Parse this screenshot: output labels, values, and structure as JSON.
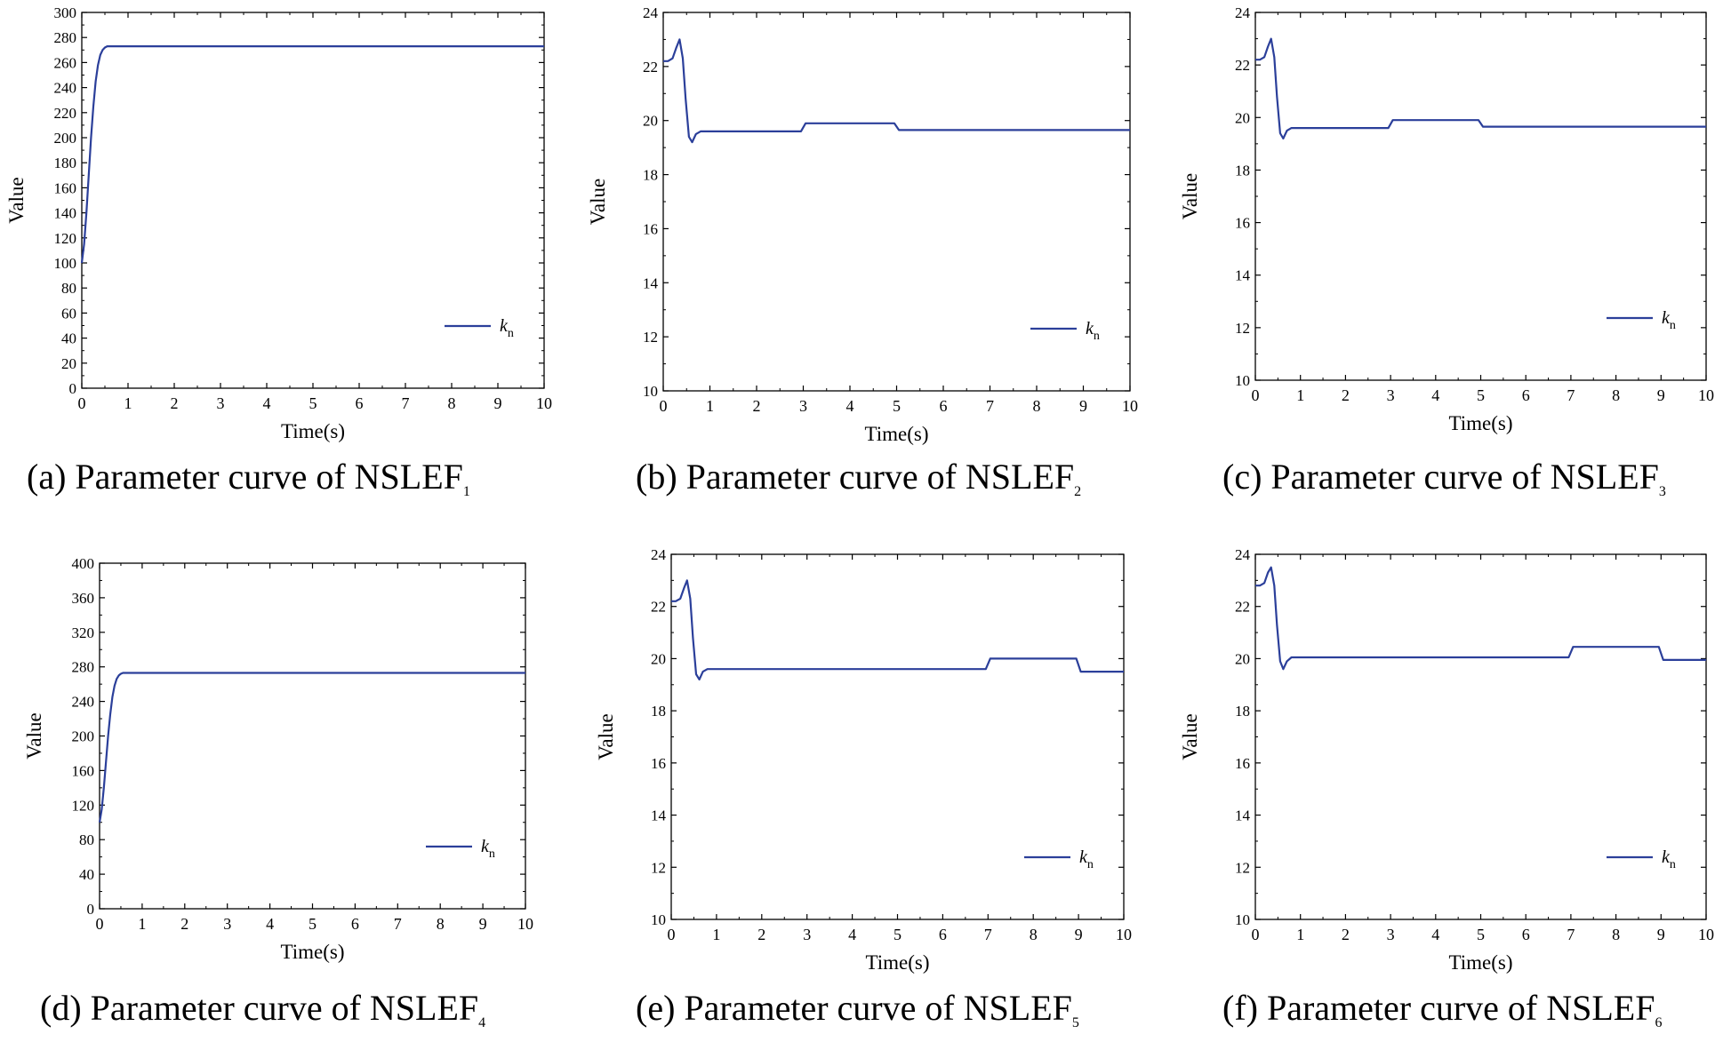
{
  "chart_data": [
    {
      "id": "a",
      "type": "line",
      "caption_main": "(a) Parameter curve of NSLEF",
      "caption_sub": "1",
      "xlabel": "Time(s)",
      "ylabel": "Value",
      "xlim": [
        0,
        10
      ],
      "ylim": [
        0,
        300
      ],
      "xticks": [
        0,
        1,
        2,
        3,
        4,
        5,
        6,
        7,
        8,
        9,
        10
      ],
      "yticks": [
        0,
        20,
        40,
        60,
        80,
        100,
        120,
        140,
        160,
        180,
        200,
        220,
        240,
        260,
        280,
        300
      ],
      "legend": {
        "label_main": "k",
        "label_sub": "n",
        "placement": "lower-right"
      },
      "series": [
        {
          "name": "kn",
          "color": "#2b3f9a",
          "x": [
            0,
            0.05,
            0.1,
            0.15,
            0.2,
            0.25,
            0.3,
            0.35,
            0.4,
            0.45,
            0.5,
            0.55,
            0.6,
            1,
            3,
            10
          ],
          "y": [
            100,
            115,
            140,
            170,
            200,
            225,
            245,
            258,
            266,
            270,
            272,
            273,
            273,
            273,
            273,
            273
          ]
        }
      ]
    },
    {
      "id": "b",
      "type": "line",
      "caption_main": "(b) Parameter curve of NSLEF",
      "caption_sub": "2",
      "xlabel": "Time(s)",
      "ylabel": "Value",
      "xlim": [
        0,
        10
      ],
      "ylim": [
        10,
        24
      ],
      "xticks": [
        0,
        1,
        2,
        3,
        4,
        5,
        6,
        7,
        8,
        9,
        10
      ],
      "yticks": [
        10,
        12,
        14,
        16,
        18,
        20,
        22,
        24
      ],
      "legend": {
        "label_main": "k",
        "label_sub": "n",
        "placement": "lower-right"
      },
      "series": [
        {
          "name": "kn",
          "color": "#2b3f9a",
          "x": [
            0,
            0.1,
            0.2,
            0.28,
            0.35,
            0.42,
            0.48,
            0.55,
            0.62,
            0.7,
            0.8,
            1,
            2.95,
            3.05,
            4.95,
            5.05,
            10
          ],
          "y": [
            22.2,
            22.2,
            22.3,
            22.7,
            23.0,
            22.3,
            20.8,
            19.4,
            19.2,
            19.5,
            19.6,
            19.6,
            19.6,
            19.9,
            19.9,
            19.65,
            19.65
          ]
        }
      ]
    },
    {
      "id": "c",
      "type": "line",
      "caption_main": "(c) Parameter curve of NSLEF",
      "caption_sub": "3",
      "xlabel": "Time(s)",
      "ylabel": "Value",
      "xlim": [
        0,
        10
      ],
      "ylim": [
        10,
        24
      ],
      "xticks": [
        0,
        1,
        2,
        3,
        4,
        5,
        6,
        7,
        8,
        9,
        10
      ],
      "yticks": [
        10,
        12,
        14,
        16,
        18,
        20,
        22,
        24
      ],
      "legend": {
        "label_main": "k",
        "label_sub": "n",
        "placement": "lower-right"
      },
      "series": [
        {
          "name": "kn",
          "color": "#2b3f9a",
          "x": [
            0,
            0.1,
            0.2,
            0.28,
            0.35,
            0.42,
            0.48,
            0.55,
            0.62,
            0.7,
            0.8,
            1,
            2.95,
            3.05,
            4.95,
            5.05,
            10
          ],
          "y": [
            22.2,
            22.2,
            22.3,
            22.7,
            23.0,
            22.3,
            20.8,
            19.4,
            19.2,
            19.5,
            19.6,
            19.6,
            19.6,
            19.9,
            19.9,
            19.65,
            19.65
          ]
        }
      ]
    },
    {
      "id": "d",
      "type": "line",
      "caption_main": "(d) Parameter curve of NSLEF",
      "caption_sub": "4",
      "xlabel": "Time(s)",
      "ylabel": "Value",
      "xlim": [
        0,
        10
      ],
      "ylim": [
        0,
        400
      ],
      "xticks": [
        0,
        1,
        2,
        3,
        4,
        5,
        6,
        7,
        8,
        9,
        10
      ],
      "yticks": [
        0,
        40,
        80,
        120,
        160,
        200,
        240,
        280,
        320,
        360,
        400
      ],
      "legend": {
        "label_main": "k",
        "label_sub": "n",
        "placement": "lower-right"
      },
      "series": [
        {
          "name": "kn",
          "color": "#2b3f9a",
          "x": [
            0,
            0.05,
            0.1,
            0.15,
            0.2,
            0.25,
            0.3,
            0.35,
            0.4,
            0.45,
            0.5,
            0.55,
            0.6,
            1,
            10
          ],
          "y": [
            100,
            115,
            140,
            170,
            200,
            225,
            245,
            258,
            266,
            270,
            272,
            273,
            273,
            273,
            273
          ]
        }
      ]
    },
    {
      "id": "e",
      "type": "line",
      "caption_main": "(e) Parameter curve of NSLEF",
      "caption_sub": "5",
      "xlabel": "Time(s)",
      "ylabel": "Value",
      "xlim": [
        0,
        10
      ],
      "ylim": [
        10,
        24
      ],
      "xticks": [
        0,
        1,
        2,
        3,
        4,
        5,
        6,
        7,
        8,
        9,
        10
      ],
      "yticks": [
        10,
        12,
        14,
        16,
        18,
        20,
        22,
        24
      ],
      "legend": {
        "label_main": "k",
        "label_sub": "n",
        "placement": "lower-right"
      },
      "series": [
        {
          "name": "kn",
          "color": "#2b3f9a",
          "x": [
            0,
            0.1,
            0.2,
            0.28,
            0.35,
            0.42,
            0.48,
            0.55,
            0.62,
            0.7,
            0.8,
            1,
            6.95,
            7.05,
            8.95,
            9.05,
            10
          ],
          "y": [
            22.2,
            22.2,
            22.3,
            22.7,
            23.0,
            22.3,
            20.8,
            19.4,
            19.2,
            19.5,
            19.6,
            19.6,
            19.6,
            20.0,
            20.0,
            19.5,
            19.5
          ]
        }
      ]
    },
    {
      "id": "f",
      "type": "line",
      "caption_main": "(f) Parameter curve of NSLEF",
      "caption_sub": "6",
      "xlabel": "Time(s)",
      "ylabel": "Value",
      "xlim": [
        0,
        10
      ],
      "ylim": [
        10,
        24
      ],
      "xticks": [
        0,
        1,
        2,
        3,
        4,
        5,
        6,
        7,
        8,
        9,
        10
      ],
      "yticks": [
        10,
        12,
        14,
        16,
        18,
        20,
        22,
        24
      ],
      "legend": {
        "label_main": "k",
        "label_sub": "n",
        "placement": "lower-right"
      },
      "series": [
        {
          "name": "kn",
          "color": "#2b3f9a",
          "x": [
            0,
            0.1,
            0.2,
            0.28,
            0.35,
            0.42,
            0.48,
            0.55,
            0.62,
            0.7,
            0.8,
            1,
            6.95,
            7.05,
            8.95,
            9.05,
            10
          ],
          "y": [
            22.8,
            22.8,
            22.9,
            23.3,
            23.5,
            22.8,
            21.3,
            19.9,
            19.6,
            19.9,
            20.05,
            20.05,
            20.05,
            20.45,
            20.45,
            19.95,
            19.95
          ]
        }
      ]
    }
  ]
}
